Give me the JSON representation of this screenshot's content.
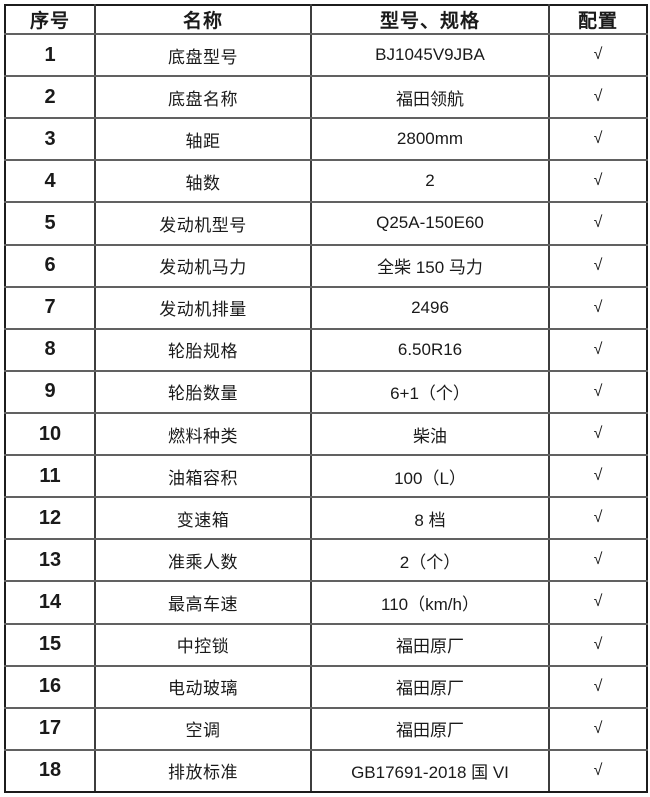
{
  "table": {
    "headers": {
      "no": "序号",
      "name": "名称",
      "spec": "型号、规格",
      "config": "配置"
    },
    "rows": [
      {
        "no": "1",
        "name": "底盘型号",
        "spec": "BJ1045V9JBA",
        "check": "√"
      },
      {
        "no": "2",
        "name": "底盘名称",
        "spec": "福田领航",
        "check": "√"
      },
      {
        "no": "3",
        "name": "轴距",
        "spec": "2800mm",
        "check": "√"
      },
      {
        "no": "4",
        "name": "轴数",
        "spec": "2",
        "check": "√"
      },
      {
        "no": "5",
        "name": "发动机型号",
        "spec": "Q25A-150E60",
        "check": "√"
      },
      {
        "no": "6",
        "name": "发动机马力",
        "spec": "全柴 150 马力",
        "check": "√"
      },
      {
        "no": "7",
        "name": "发动机排量",
        "spec": "2496",
        "check": "√"
      },
      {
        "no": "8",
        "name": "轮胎规格",
        "spec": "6.50R16",
        "check": "√"
      },
      {
        "no": "9",
        "name": "轮胎数量",
        "spec": "6+1（个）",
        "check": "√"
      },
      {
        "no": "10",
        "name": "燃料种类",
        "spec": "柴油",
        "check": "√"
      },
      {
        "no": "11",
        "name": "油箱容积",
        "spec": "100（L）",
        "check": "√"
      },
      {
        "no": "12",
        "name": "变速箱",
        "spec": "8 档",
        "check": "√"
      },
      {
        "no": "13",
        "name": "准乘人数",
        "spec": "2（个）",
        "check": "√"
      },
      {
        "no": "14",
        "name": "最高车速",
        "spec": "110（km/h）",
        "check": "√"
      },
      {
        "no": "15",
        "name": "中控锁",
        "spec": "福田原厂",
        "check": "√"
      },
      {
        "no": "16",
        "name": "电动玻璃",
        "spec": "福田原厂",
        "check": "√"
      },
      {
        "no": "17",
        "name": "空调",
        "spec": "福田原厂",
        "check": "√"
      },
      {
        "no": "18",
        "name": "排放标准",
        "spec": "GB17691-2018 国 VI",
        "check": "√"
      }
    ],
    "colors": {
      "border_outer": "#1c1c1c",
      "border_inner_h": "#616161",
      "border_inner_v": "#3d3d3d",
      "text": "#1a1a1a",
      "background": "#ffffff"
    }
  }
}
